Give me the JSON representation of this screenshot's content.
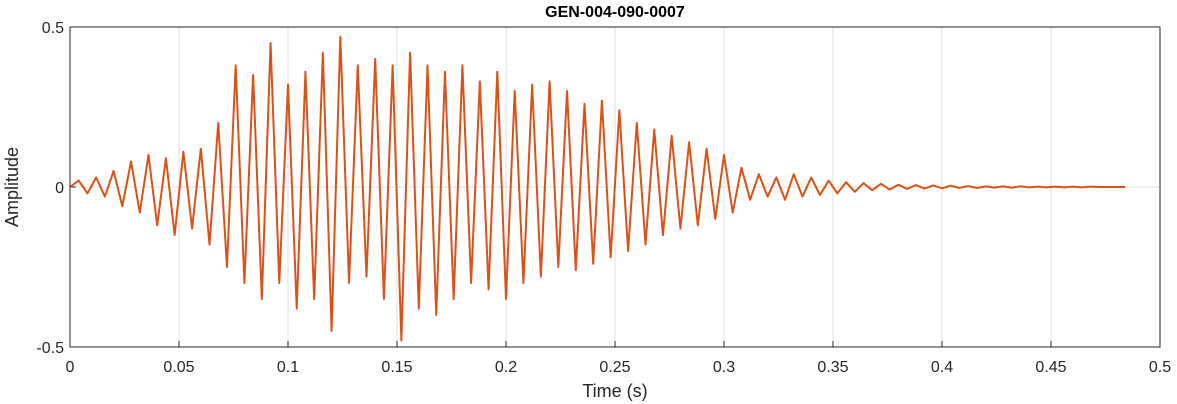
{
  "chart_data": {
    "type": "line",
    "title": "GEN-004-090-0007",
    "xlabel": "Time (s)",
    "ylabel": "Amplitude",
    "color": "#d95319",
    "grid": true,
    "xlim": [
      0,
      0.5
    ],
    "xticks": [
      0,
      0.05,
      0.1,
      0.15,
      0.2,
      0.25,
      0.3,
      0.35,
      0.4,
      0.45,
      0.5
    ],
    "ylim": [
      -0.5,
      0.5
    ],
    "yticks": [
      -0.5,
      0,
      0.5
    ],
    "x": [
      0,
      0.004,
      0.008,
      0.012,
      0.016,
      0.02,
      0.024,
      0.028,
      0.032,
      0.036,
      0.04,
      0.044,
      0.048,
      0.052,
      0.056,
      0.06,
      0.064,
      0.068,
      0.072,
      0.076,
      0.08,
      0.084,
      0.088,
      0.092,
      0.096,
      0.1,
      0.104,
      0.108,
      0.112,
      0.116,
      0.12,
      0.124,
      0.128,
      0.132,
      0.136,
      0.14,
      0.144,
      0.148,
      0.152,
      0.156,
      0.16,
      0.164,
      0.168,
      0.172,
      0.176,
      0.18,
      0.184,
      0.188,
      0.192,
      0.196,
      0.2,
      0.204,
      0.208,
      0.212,
      0.216,
      0.22,
      0.224,
      0.228,
      0.232,
      0.236,
      0.24,
      0.244,
      0.248,
      0.252,
      0.256,
      0.26,
      0.264,
      0.268,
      0.272,
      0.276,
      0.28,
      0.284,
      0.288,
      0.292,
      0.296,
      0.3,
      0.304,
      0.308,
      0.312,
      0.316,
      0.32,
      0.324,
      0.328,
      0.332,
      0.336,
      0.34,
      0.344,
      0.348,
      0.352,
      0.356,
      0.36,
      0.364,
      0.368,
      0.372,
      0.376,
      0.38,
      0.384,
      0.388,
      0.392,
      0.396,
      0.4,
      0.404,
      0.408,
      0.412,
      0.416,
      0.42,
      0.424,
      0.428,
      0.432,
      0.436,
      0.44,
      0.444,
      0.448,
      0.452,
      0.456,
      0.46,
      0.464,
      0.468,
      0.472,
      0.476,
      0.48,
      0.484
    ],
    "values": [
      0,
      0.02,
      -0.02,
      0.03,
      -0.03,
      0.05,
      -0.06,
      0.08,
      -0.08,
      0.1,
      -0.12,
      0.09,
      -0.15,
      0.11,
      -0.13,
      0.12,
      -0.18,
      0.2,
      -0.25,
      0.38,
      -0.3,
      0.35,
      -0.35,
      0.45,
      -0.3,
      0.32,
      -0.38,
      0.36,
      -0.35,
      0.42,
      -0.45,
      0.47,
      -0.3,
      0.38,
      -0.28,
      0.4,
      -0.35,
      0.38,
      -0.48,
      0.42,
      -0.38,
      0.38,
      -0.4,
      0.36,
      -0.35,
      0.38,
      -0.3,
      0.33,
      -0.32,
      0.36,
      -0.35,
      0.3,
      -0.3,
      0.32,
      -0.28,
      0.33,
      -0.25,
      0.3,
      -0.26,
      0.26,
      -0.24,
      0.27,
      -0.22,
      0.24,
      -0.2,
      0.2,
      -0.18,
      0.18,
      -0.15,
      0.16,
      -0.13,
      0.14,
      -0.12,
      0.12,
      -0.1,
      0.1,
      -0.08,
      0.06,
      -0.04,
      0.04,
      -0.03,
      0.03,
      -0.04,
      0.04,
      -0.03,
      0.03,
      -0.025,
      0.02,
      -0.02,
      0.015,
      -0.015,
      0.012,
      -0.01,
      0.01,
      -0.008,
      0.007,
      -0.006,
      0.006,
      -0.005,
      0.005,
      -0.004,
      0.004,
      -0.003,
      0.003,
      -0.003,
      0.002,
      -0.002,
      0.002,
      -0.002,
      0.002,
      -0.001,
      0.001,
      -0.001,
      0.001,
      -0.001,
      0.001,
      -0.001,
      0.001,
      0,
      0,
      0,
      0
    ]
  }
}
